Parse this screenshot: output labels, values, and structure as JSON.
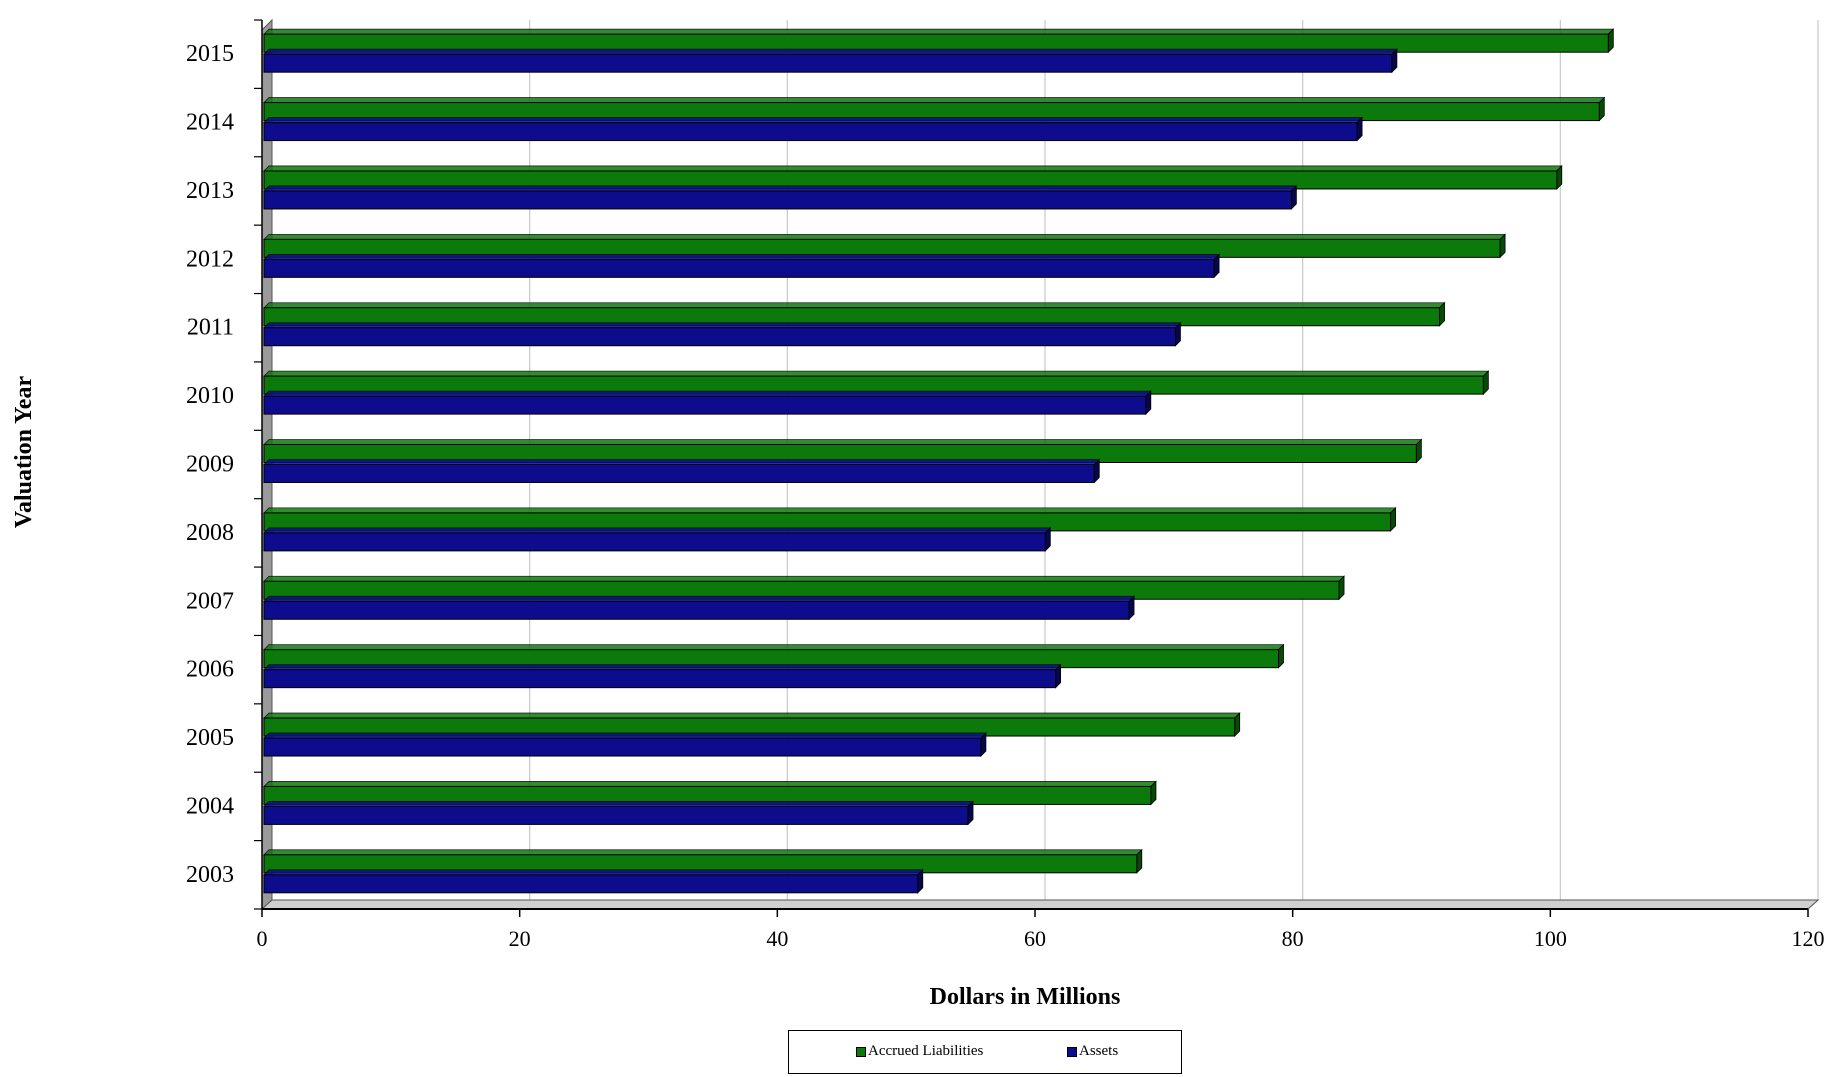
{
  "chart_data": {
    "type": "bar",
    "orientation": "horizontal",
    "style": "3d",
    "categories": [
      "2015",
      "2014",
      "2013",
      "2012",
      "2011",
      "2010",
      "2009",
      "2008",
      "2007",
      "2006",
      "2005",
      "2004",
      "2003"
    ],
    "series": [
      {
        "name": "Accrued Liabilities",
        "color": "#0b7a0b",
        "values": [
          104.5,
          103.8,
          100.5,
          96.1,
          91.4,
          94.8,
          89.6,
          87.6,
          83.6,
          78.9,
          75.5,
          69.0,
          67.9
        ]
      },
      {
        "name": "Assets",
        "color": "#0c0c8c",
        "values": [
          87.7,
          85.0,
          79.9,
          73.9,
          70.9,
          68.6,
          64.6,
          60.8,
          67.3,
          61.6,
          55.8,
          54.8,
          50.9
        ]
      }
    ],
    "xlabel": "Dollars in Millions",
    "ylabel": "Valuation Year",
    "xlim": [
      0,
      120
    ],
    "xticks": [
      "0",
      "20",
      "40",
      "60",
      "80",
      "100",
      "120"
    ],
    "grid": true,
    "legend_position": "bottom-center"
  }
}
